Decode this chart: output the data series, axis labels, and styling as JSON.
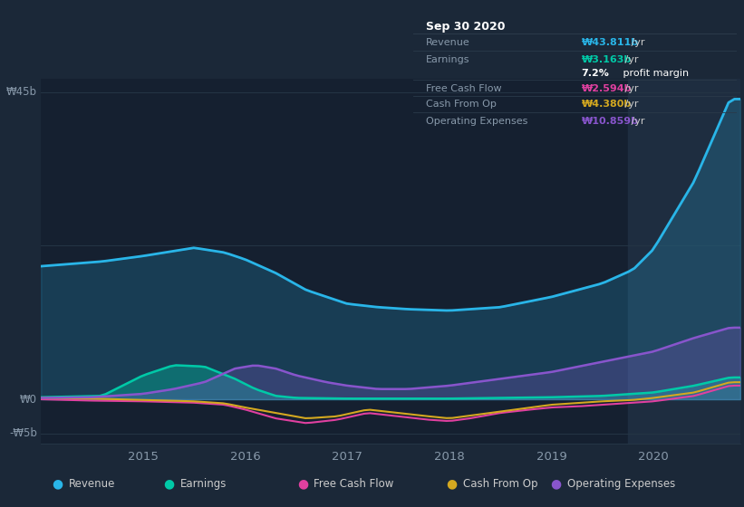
{
  "bg_color": "#1b2838",
  "plot_bg_color": "#152030",
  "darker_bg": "#0d1821",
  "shaded_bg": "#1e2d40",
  "grid_color": "#253545",
  "x_labels": [
    "2015",
    "2016",
    "2017",
    "2018",
    "2019",
    "2020"
  ],
  "ylim": [
    -6.5,
    47
  ],
  "xlim_start": 2014.0,
  "xlim_end": 2020.85,
  "shade_start": 2019.75,
  "colors": {
    "revenue": "#29b5e8",
    "earnings": "#00c9a7",
    "free_cash_flow": "#e040a0",
    "cash_from_op": "#d4a820",
    "operating_expenses": "#8855cc"
  },
  "legend_items": [
    {
      "label": "Revenue",
      "color": "#29b5e8"
    },
    {
      "label": "Earnings",
      "color": "#00c9a7"
    },
    {
      "label": "Free Cash Flow",
      "color": "#e040a0"
    },
    {
      "label": "Cash From Op",
      "color": "#d4a820"
    },
    {
      "label": "Operating Expenses",
      "color": "#8855cc"
    }
  ],
  "tooltip": {
    "date": "Sep 30 2020",
    "rows": [
      {
        "label": "Revenue",
        "value": "₩43.811b /yr",
        "color": "#29b5e8"
      },
      {
        "label": "Earnings",
        "value": "₩3.163b /yr",
        "color": "#00c9a7"
      },
      {
        "label": "",
        "value": "7.2% profit margin",
        "color": "#ffffff"
      },
      {
        "label": "Free Cash Flow",
        "value": "₩2.594b /yr",
        "color": "#e040a0"
      },
      {
        "label": "Cash From Op",
        "value": "₩4.380b /yr",
        "color": "#d4a820"
      },
      {
        "label": "Operating Expenses",
        "value": "₩10.859b /yr",
        "color": "#8855cc"
      }
    ]
  }
}
